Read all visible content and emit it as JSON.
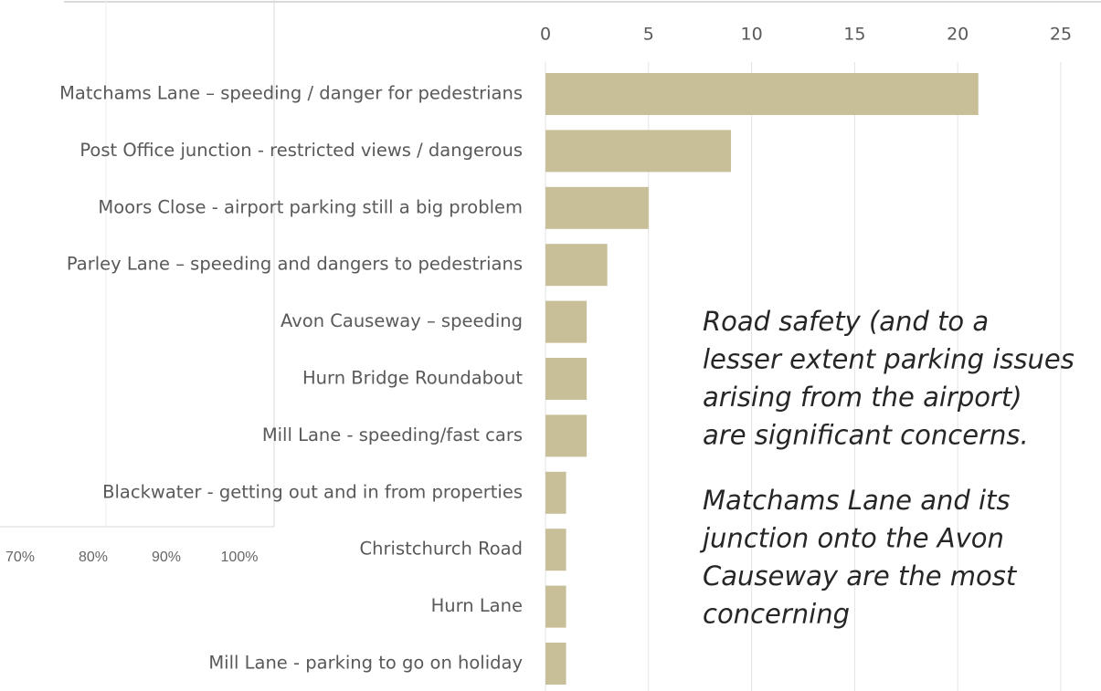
{
  "chart_data": {
    "type": "bar",
    "orientation": "horizontal",
    "categories": [
      "Matchams Lane – speeding / danger for pedestrians",
      "Post Office junction - restricted views / dangerous",
      "Moors Close - airport parking still a big problem",
      "Parley Lane – speeding and dangers to pedestrians",
      "Avon Causeway – speeding",
      "Hurn Bridge Roundabout",
      "Mill Lane - speeding/fast cars",
      "Blackwater -  getting out and in from properties",
      "Christchurch Road",
      "Hurn Lane",
      "Mill Lane - parking to go on holiday"
    ],
    "values": [
      21,
      9,
      5,
      3,
      2,
      2,
      2,
      1,
      1,
      1,
      1
    ],
    "color": "#c8bf98",
    "xlim": [
      0,
      25
    ],
    "xticks": [
      0,
      5,
      10,
      15,
      20,
      25
    ],
    "grid": true,
    "annotation": [
      [
        "Road safety (and to a",
        "lesser extent parking issues",
        "arising from the airport)",
        "are significant concerns."
      ],
      [
        "Matchams Lane and its",
        "junction onto the Avon",
        "Causeway are the most",
        "concerning"
      ]
    ],
    "background_axis": {
      "xlim": [
        70,
        100
      ],
      "xticks": [
        {
          "value": 70,
          "label": "70%"
        },
        {
          "value": 80,
          "label": "80%"
        },
        {
          "value": 90,
          "label": "90%"
        },
        {
          "value": 100,
          "label": "100%"
        }
      ]
    }
  }
}
